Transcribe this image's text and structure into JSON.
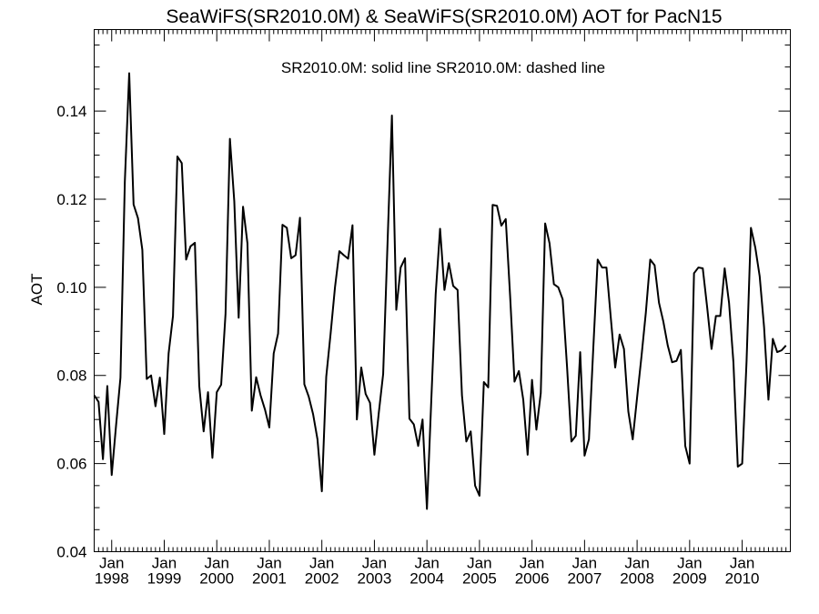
{
  "chart_data": {
    "type": "line",
    "title": "SeaWiFS(SR2010.0M) & SeaWiFS(SR2010.0M)  AOT for PacN15",
    "legend_text": "SR2010.0M: solid line   SR2010.0M: dashed line",
    "legend_placement": "top-center",
    "xlabel": "",
    "ylabel": "AOT",
    "grid": false,
    "x_range": [
      "1997-09",
      "2010-12"
    ],
    "ylim": [
      0.04,
      0.1585
    ],
    "y_ticks": [
      "0.04",
      "0.06",
      "0.08",
      "0.10",
      "0.12",
      "0.14"
    ],
    "x_ticks": [
      {
        "month": "Jan",
        "year": "1998",
        "date": "1998-01"
      },
      {
        "month": "Jan",
        "year": "1999",
        "date": "1999-01"
      },
      {
        "month": "Jan",
        "year": "2000",
        "date": "2000-01"
      },
      {
        "month": "Jan",
        "year": "2001",
        "date": "2001-01"
      },
      {
        "month": "Jan",
        "year": "2002",
        "date": "2002-01"
      },
      {
        "month": "Jan",
        "year": "2003",
        "date": "2003-01"
      },
      {
        "month": "Jan",
        "year": "2004",
        "date": "2004-01"
      },
      {
        "month": "Jan",
        "year": "2005",
        "date": "2005-01"
      },
      {
        "month": "Jan",
        "year": "2006",
        "date": "2006-01"
      },
      {
        "month": "Jan",
        "year": "2007",
        "date": "2007-01"
      },
      {
        "month": "Jan",
        "year": "2008",
        "date": "2008-01"
      },
      {
        "month": "Jan",
        "year": "2009",
        "date": "2009-01"
      },
      {
        "month": "Jan",
        "year": "2010",
        "date": "2010-01"
      }
    ],
    "series": [
      {
        "style": "solid",
        "color": "#000000",
        "points": [
          [
            "1997-09",
            0.0755
          ],
          [
            "1997-10",
            0.074
          ],
          [
            "1997-11",
            0.061
          ],
          [
            "1997-12",
            0.0776
          ],
          [
            "1998-01",
            0.0574
          ],
          [
            "1998-02",
            0.0687
          ],
          [
            "1998-03",
            0.0795
          ],
          [
            "1998-04",
            0.124
          ],
          [
            "1998-05",
            0.1486
          ],
          [
            "1998-06",
            0.1188
          ],
          [
            "1998-07",
            0.1157
          ],
          [
            "1998-08",
            0.1085
          ],
          [
            "1998-09",
            0.0792
          ],
          [
            "1998-10",
            0.08
          ],
          [
            "1998-11",
            0.073
          ],
          [
            "1998-12",
            0.0795
          ],
          [
            "1999-01",
            0.0667
          ],
          [
            "1999-02",
            0.085
          ],
          [
            "1999-03",
            0.0935
          ],
          [
            "1999-04",
            0.1297
          ],
          [
            "1999-05",
            0.1282
          ],
          [
            "1999-06",
            0.1063
          ],
          [
            "1999-07",
            0.1093
          ],
          [
            "1999-08",
            0.1101
          ],
          [
            "1999-09",
            0.0776
          ],
          [
            "1999-10",
            0.0673
          ],
          [
            "1999-11",
            0.0762
          ],
          [
            "1999-12",
            0.0613
          ],
          [
            "2000-01",
            0.0762
          ],
          [
            "2000-02",
            0.0779
          ],
          [
            "2000-03",
            0.094
          ],
          [
            "2000-04",
            0.1337
          ],
          [
            "2000-05",
            0.1195
          ],
          [
            "2000-06",
            0.0931
          ],
          [
            "2000-07",
            0.1183
          ],
          [
            "2000-08",
            0.11
          ],
          [
            "2000-09",
            0.072
          ],
          [
            "2000-10",
            0.0796
          ],
          [
            "2000-11",
            0.0755
          ],
          [
            "2000-12",
            0.0723
          ],
          [
            "2001-01",
            0.0682
          ],
          [
            "2001-02",
            0.085
          ],
          [
            "2001-03",
            0.0895
          ],
          [
            "2001-04",
            0.1142
          ],
          [
            "2001-05",
            0.1135
          ],
          [
            "2001-06",
            0.1066
          ],
          [
            "2001-07",
            0.1073
          ],
          [
            "2001-08",
            0.1158
          ],
          [
            "2001-09",
            0.078
          ],
          [
            "2001-10",
            0.0752
          ],
          [
            "2001-11",
            0.0712
          ],
          [
            "2001-12",
            0.0655
          ],
          [
            "2002-01",
            0.0537
          ],
          [
            "2002-02",
            0.0797
          ],
          [
            "2002-03",
            0.0895
          ],
          [
            "2002-04",
            0.1
          ],
          [
            "2002-05",
            0.1082
          ],
          [
            "2002-06",
            0.1073
          ],
          [
            "2002-07",
            0.1065
          ],
          [
            "2002-08",
            0.1141
          ],
          [
            "2002-09",
            0.07
          ],
          [
            "2002-10",
            0.0818
          ],
          [
            "2002-11",
            0.0758
          ],
          [
            "2002-12",
            0.0738
          ],
          [
            "2003-01",
            0.062
          ],
          [
            "2003-02",
            0.0715
          ],
          [
            "2003-03",
            0.0803
          ],
          [
            "2003-04",
            0.11
          ],
          [
            "2003-05",
            0.139
          ],
          [
            "2003-06",
            0.0949
          ],
          [
            "2003-07",
            0.1045
          ],
          [
            "2003-08",
            0.1066
          ],
          [
            "2003-09",
            0.0702
          ],
          [
            "2003-10",
            0.0689
          ],
          [
            "2003-11",
            0.064
          ],
          [
            "2003-12",
            0.07
          ],
          [
            "2004-01",
            0.0497
          ],
          [
            "2004-02",
            0.0745
          ],
          [
            "2004-03",
            0.0985
          ],
          [
            "2004-04",
            0.1133
          ],
          [
            "2004-05",
            0.0994
          ],
          [
            "2004-06",
            0.1055
          ],
          [
            "2004-07",
            0.1003
          ],
          [
            "2004-08",
            0.0994
          ],
          [
            "2004-09",
            0.0755
          ],
          [
            "2004-10",
            0.065
          ],
          [
            "2004-11",
            0.0673
          ],
          [
            "2004-12",
            0.055
          ],
          [
            "2005-01",
            0.0527
          ],
          [
            "2005-02",
            0.0785
          ],
          [
            "2005-03",
            0.0773
          ],
          [
            "2005-04",
            0.1187
          ],
          [
            "2005-05",
            0.1185
          ],
          [
            "2005-06",
            0.114
          ],
          [
            "2005-07",
            0.1155
          ],
          [
            "2005-08",
            0.098
          ],
          [
            "2005-09",
            0.0786
          ],
          [
            "2005-10",
            0.081
          ],
          [
            "2005-11",
            0.0745
          ],
          [
            "2005-12",
            0.062
          ],
          [
            "2006-01",
            0.079
          ],
          [
            "2006-02",
            0.0677
          ],
          [
            "2006-03",
            0.076
          ],
          [
            "2006-04",
            0.1145
          ],
          [
            "2006-05",
            0.11
          ],
          [
            "2006-06",
            0.1007
          ],
          [
            "2006-07",
            0.1
          ],
          [
            "2006-08",
            0.0973
          ],
          [
            "2006-09",
            0.082
          ],
          [
            "2006-10",
            0.065
          ],
          [
            "2006-11",
            0.0663
          ],
          [
            "2006-12",
            0.0853
          ],
          [
            "2007-01",
            0.0618
          ],
          [
            "2007-02",
            0.0655
          ],
          [
            "2007-03",
            0.0863
          ],
          [
            "2007-04",
            0.1063
          ],
          [
            "2007-05",
            0.1045
          ],
          [
            "2007-06",
            0.1045
          ],
          [
            "2007-07",
            0.093
          ],
          [
            "2007-08",
            0.0818
          ],
          [
            "2007-09",
            0.0893
          ],
          [
            "2007-10",
            0.086
          ],
          [
            "2007-11",
            0.0718
          ],
          [
            "2007-12",
            0.0655
          ],
          [
            "2008-01",
            0.075
          ],
          [
            "2008-02",
            0.0843
          ],
          [
            "2008-03",
            0.0943
          ],
          [
            "2008-04",
            0.1063
          ],
          [
            "2008-05",
            0.105
          ],
          [
            "2008-06",
            0.0965
          ],
          [
            "2008-07",
            0.0922
          ],
          [
            "2008-08",
            0.0868
          ],
          [
            "2008-09",
            0.083
          ],
          [
            "2008-10",
            0.0833
          ],
          [
            "2008-11",
            0.0858
          ],
          [
            "2008-12",
            0.064
          ],
          [
            "2009-01",
            0.06
          ],
          [
            "2009-02",
            0.1032
          ],
          [
            "2009-03",
            0.1045
          ],
          [
            "2009-04",
            0.1043
          ],
          [
            "2009-05",
            0.0955
          ],
          [
            "2009-06",
            0.086
          ],
          [
            "2009-07",
            0.0935
          ],
          [
            "2009-08",
            0.0935
          ],
          [
            "2009-09",
            0.1043
          ],
          [
            "2009-10",
            0.0965
          ],
          [
            "2009-11",
            0.083
          ],
          [
            "2009-12",
            0.0593
          ],
          [
            "2010-01",
            0.06
          ],
          [
            "2010-02",
            0.0832
          ],
          [
            "2010-03",
            0.1135
          ],
          [
            "2010-04",
            0.109
          ],
          [
            "2010-05",
            0.1025
          ],
          [
            "2010-06",
            0.091
          ],
          [
            "2010-07",
            0.0745
          ],
          [
            "2010-08",
            0.0883
          ],
          [
            "2010-09",
            0.0853
          ],
          [
            "2010-10",
            0.0857
          ],
          [
            "2010-11",
            0.0868
          ]
        ]
      }
    ]
  }
}
